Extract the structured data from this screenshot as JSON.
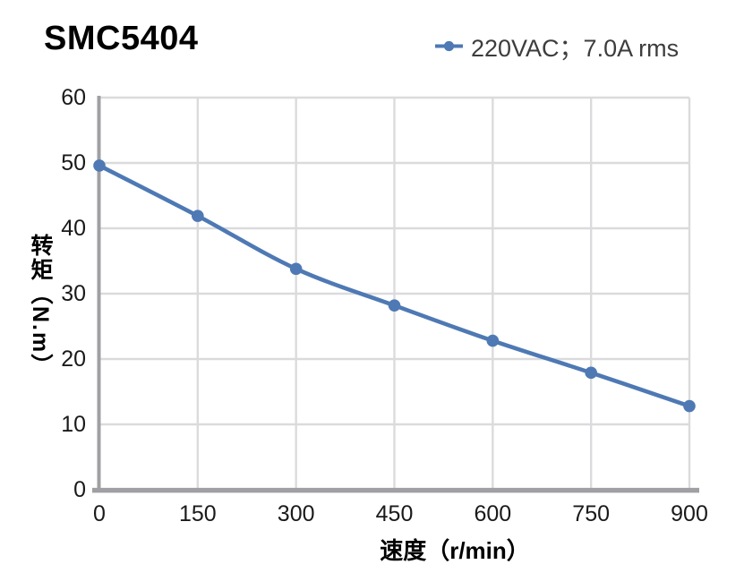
{
  "header": {
    "title": "SMC5404",
    "legend": {
      "label": "220VAC；7.0A rms",
      "marker": "line-with-dot",
      "marker_color": "#4E79B4"
    }
  },
  "chart_data": {
    "type": "line",
    "x": [
      0,
      150,
      300,
      450,
      600,
      750,
      900
    ],
    "series": [
      {
        "name": "220VAC；7.0A rms",
        "color": "#4E79B4",
        "values": [
          49.6,
          41.9,
          33.8,
          28.2,
          22.8,
          17.9,
          12.8
        ]
      }
    ],
    "title": "SMC5404",
    "xlabel": "速度（r/min）",
    "ylabel": "转矩（N.m）",
    "xlim": [
      0,
      900
    ],
    "ylim": [
      0,
      60
    ],
    "x_ticks": [
      0,
      150,
      300,
      450,
      600,
      750,
      900
    ],
    "y_ticks": [
      0,
      10,
      20,
      30,
      40,
      50,
      60
    ],
    "grid": true,
    "smooth_line": true,
    "legend_position": "top-right",
    "colors": {
      "gridline": "#DBDBDD",
      "axis": "#A0A0A4",
      "tick_text": "#1A1A1A",
      "axis_title_text": "#000000",
      "legend_text": "#3D3D3D",
      "background": "#FFFFFF"
    }
  }
}
